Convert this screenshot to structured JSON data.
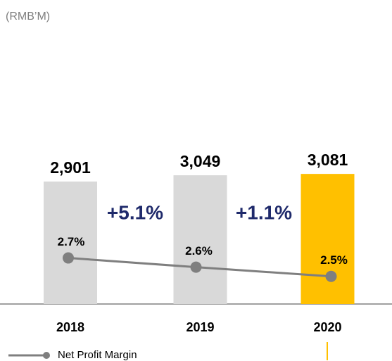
{
  "chart_data": {
    "type": "bar",
    "subtitle": "(RMB’M)",
    "categories": [
      "2018",
      "2019",
      "2020"
    ],
    "ylim": [
      0,
      7200
    ],
    "y2lim": [
      2.2,
      5.5
    ],
    "series": [
      {
        "type": "bar",
        "values": [
          2901,
          3049,
          3081
        ],
        "value_labels": [
          "2,901",
          "3,049",
          "3,081"
        ],
        "colors": [
          "#d9d9d9",
          "#d9d9d9",
          "#ffc000"
        ]
      },
      {
        "type": "line",
        "name": "Net Profit Margin",
        "color": "#7f7f7f",
        "axis": "y2",
        "values": [
          2.7,
          2.6,
          2.5
        ],
        "value_labels": [
          "2.7%",
          "2.6%",
          "2.5%"
        ]
      }
    ],
    "annotations": [
      "+5.1%",
      "+1.1%"
    ],
    "annotation_color": "#1f2a6b"
  }
}
